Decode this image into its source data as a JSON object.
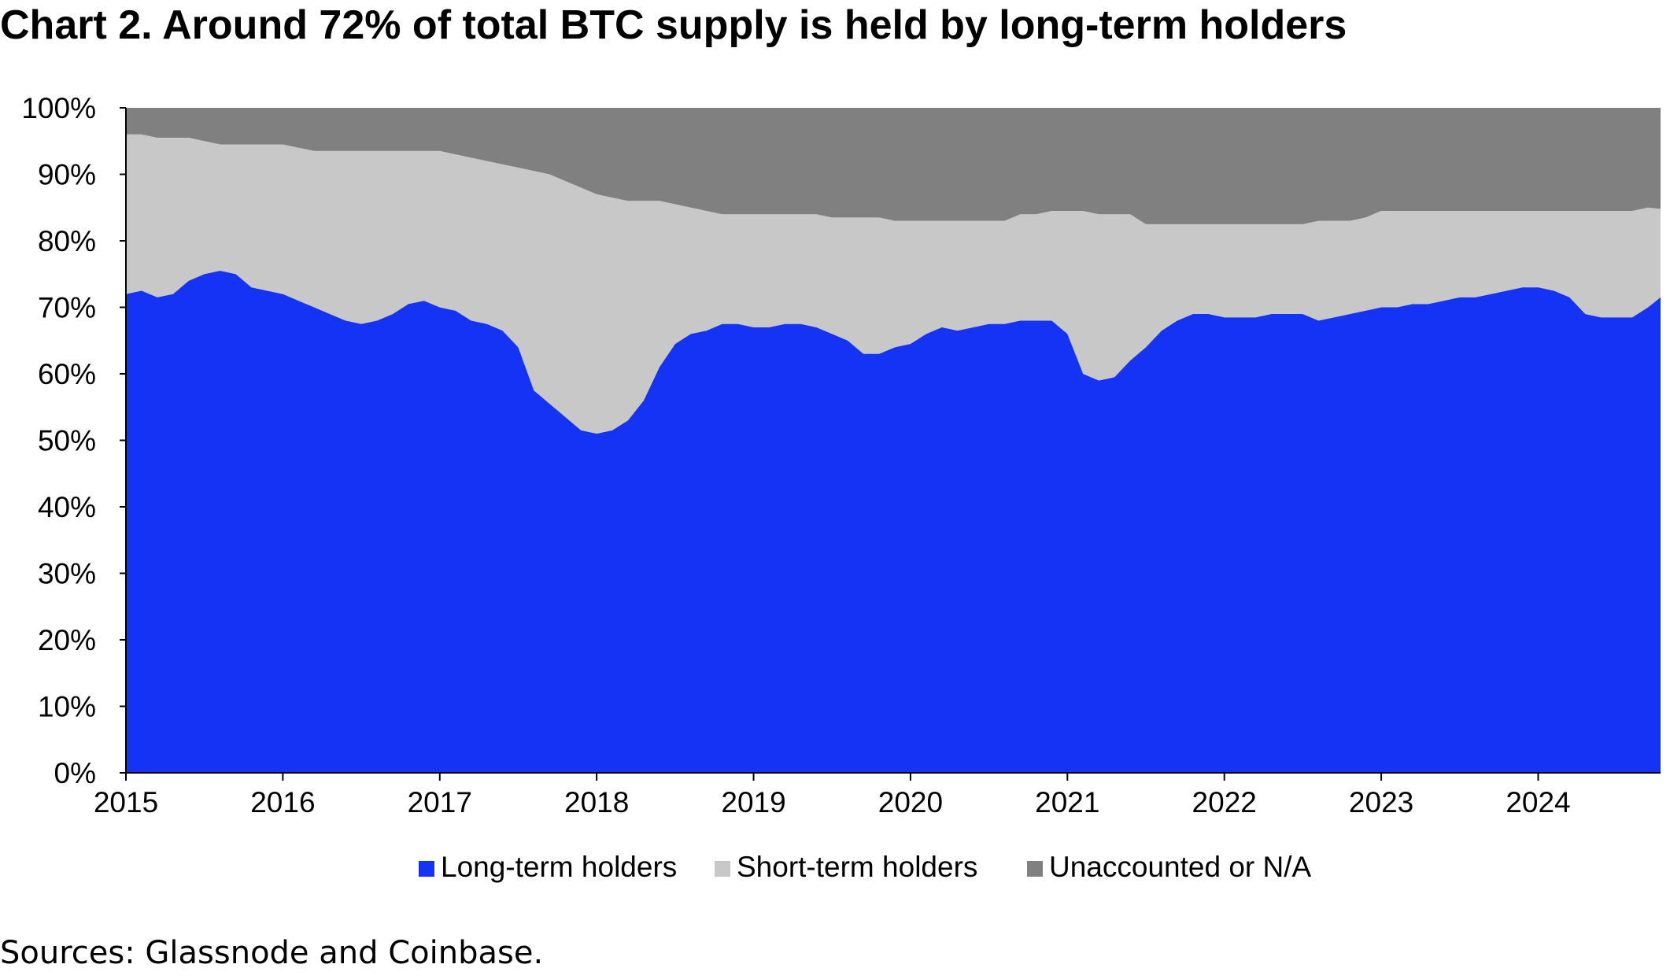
{
  "title": "Chart 2. Around 72% of total BTC supply is held by long-term holders",
  "source": "Sources: Glassnode and Coinbase.",
  "chart_data": {
    "type": "area",
    "stacked": true,
    "title": "Chart 2. Around 72% of total BTC supply is held by long-term holders",
    "xlabel": "",
    "ylabel": "",
    "xlim": [
      2015.0,
      2024.78
    ],
    "ylim": [
      0,
      100
    ],
    "x_ticks": [
      "2015",
      "2016",
      "2017",
      "2018",
      "2019",
      "2020",
      "2021",
      "2022",
      "2023",
      "2024"
    ],
    "y_ticks": [
      "0%",
      "10%",
      "20%",
      "30%",
      "40%",
      "50%",
      "60%",
      "70%",
      "80%",
      "90%",
      "100%"
    ],
    "grid": false,
    "legend_position": "bottom",
    "colors": {
      "Long-term holders": "#1533F5",
      "Short-term holders": "#C8C8C8",
      "Unaccounted or N/A": "#808080"
    },
    "x": [
      2015.0,
      2015.1,
      2015.2,
      2015.3,
      2015.4,
      2015.5,
      2015.6,
      2015.7,
      2015.8,
      2015.9,
      2016.0,
      2016.1,
      2016.2,
      2016.3,
      2016.4,
      2016.5,
      2016.6,
      2016.7,
      2016.8,
      2016.9,
      2017.0,
      2017.1,
      2017.2,
      2017.3,
      2017.4,
      2017.5,
      2017.6,
      2017.7,
      2017.8,
      2017.9,
      2018.0,
      2018.1,
      2018.2,
      2018.3,
      2018.4,
      2018.5,
      2018.6,
      2018.7,
      2018.8,
      2018.9,
      2019.0,
      2019.1,
      2019.2,
      2019.3,
      2019.4,
      2019.5,
      2019.6,
      2019.7,
      2019.8,
      2019.9,
      2020.0,
      2020.1,
      2020.2,
      2020.3,
      2020.4,
      2020.5,
      2020.6,
      2020.7,
      2020.8,
      2020.9,
      2021.0,
      2021.1,
      2021.2,
      2021.3,
      2021.4,
      2021.5,
      2021.6,
      2021.7,
      2021.8,
      2021.9,
      2022.0,
      2022.1,
      2022.2,
      2022.3,
      2022.4,
      2022.5,
      2022.6,
      2022.7,
      2022.8,
      2022.9,
      2023.0,
      2023.1,
      2023.2,
      2023.3,
      2023.4,
      2023.5,
      2023.6,
      2023.7,
      2023.8,
      2023.9,
      2024.0,
      2024.1,
      2024.2,
      2024.3,
      2024.4,
      2024.5,
      2024.6,
      2024.7,
      2024.78
    ],
    "series": [
      {
        "name": "Long-term holders",
        "values": [
          72.0,
          72.5,
          71.5,
          72.0,
          74.0,
          75.0,
          75.5,
          75.0,
          73.0,
          72.5,
          72.0,
          71.0,
          70.0,
          69.0,
          68.0,
          67.5,
          68.0,
          69.0,
          70.5,
          71.0,
          70.0,
          69.5,
          68.0,
          67.5,
          66.5,
          64.0,
          57.5,
          55.5,
          53.5,
          51.5,
          51.0,
          51.5,
          53.0,
          56.0,
          61.0,
          64.5,
          66.0,
          66.5,
          67.5,
          67.5,
          67.0,
          67.0,
          67.5,
          67.5,
          67.0,
          66.0,
          65.0,
          63.0,
          63.0,
          64.0,
          64.5,
          66.0,
          67.0,
          66.5,
          67.0,
          67.5,
          67.5,
          68.0,
          68.0,
          68.0,
          66.0,
          60.0,
          59.0,
          59.5,
          62.0,
          64.0,
          66.5,
          68.0,
          69.0,
          69.0,
          68.5,
          68.5,
          68.5,
          69.0,
          69.0,
          69.0,
          68.0,
          68.5,
          69.0,
          69.5,
          70.0,
          70.0,
          70.5,
          70.5,
          71.0,
          71.5,
          71.5,
          72.0,
          72.5,
          73.0,
          73.0,
          72.5,
          71.5,
          69.0,
          68.5,
          68.5,
          68.5,
          70.0,
          71.5
        ]
      },
      {
        "name": "Short-term holders",
        "values": [
          24.0,
          23.5,
          24.0,
          23.5,
          21.5,
          20.0,
          19.0,
          19.5,
          21.5,
          22.0,
          22.5,
          23.0,
          23.5,
          24.5,
          25.5,
          26.0,
          25.5,
          24.5,
          23.0,
          22.5,
          23.5,
          23.5,
          24.5,
          24.5,
          25.0,
          27.0,
          33.0,
          34.5,
          35.5,
          36.5,
          36.0,
          35.0,
          33.0,
          30.0,
          25.0,
          21.0,
          19.0,
          18.0,
          16.5,
          16.5,
          17.0,
          17.0,
          16.5,
          16.5,
          17.0,
          17.5,
          18.5,
          20.5,
          20.5,
          19.0,
          18.5,
          17.0,
          16.0,
          16.5,
          16.0,
          15.5,
          15.5,
          16.0,
          16.0,
          16.5,
          18.5,
          24.5,
          25.0,
          24.5,
          22.0,
          18.5,
          16.0,
          14.5,
          13.5,
          13.5,
          14.0,
          14.0,
          14.0,
          13.5,
          13.5,
          13.5,
          15.0,
          14.5,
          14.0,
          14.0,
          14.5,
          14.5,
          14.0,
          14.0,
          13.5,
          13.0,
          13.0,
          12.5,
          12.0,
          11.5,
          11.5,
          12.0,
          13.0,
          15.5,
          16.0,
          16.0,
          16.0,
          15.0,
          13.3
        ]
      },
      {
        "name": "Unaccounted or N/A",
        "values": [
          4.0,
          4.0,
          4.5,
          4.5,
          4.5,
          5.0,
          5.5,
          5.5,
          5.5,
          5.5,
          5.5,
          6.0,
          6.5,
          6.5,
          6.5,
          6.5,
          6.5,
          6.5,
          6.5,
          6.5,
          6.5,
          7.0,
          7.5,
          8.0,
          8.5,
          9.0,
          9.5,
          10.0,
          11.0,
          12.0,
          13.0,
          13.5,
          14.0,
          14.0,
          14.0,
          14.5,
          15.0,
          15.5,
          16.0,
          16.0,
          16.0,
          16.0,
          16.0,
          16.0,
          16.0,
          16.5,
          16.5,
          16.5,
          16.5,
          17.0,
          17.0,
          17.0,
          17.0,
          17.0,
          17.0,
          17.0,
          17.0,
          16.0,
          16.0,
          15.5,
          15.5,
          15.5,
          16.0,
          16.0,
          16.0,
          17.5,
          17.5,
          17.5,
          17.5,
          17.5,
          17.5,
          17.5,
          17.5,
          17.5,
          17.5,
          17.5,
          17.0,
          17.0,
          17.0,
          16.5,
          15.5,
          15.5,
          15.5,
          15.5,
          15.5,
          15.5,
          15.5,
          15.5,
          15.5,
          15.5,
          15.5,
          15.5,
          15.5,
          15.5,
          15.5,
          15.5,
          15.5,
          15.0,
          15.2
        ]
      }
    ]
  }
}
